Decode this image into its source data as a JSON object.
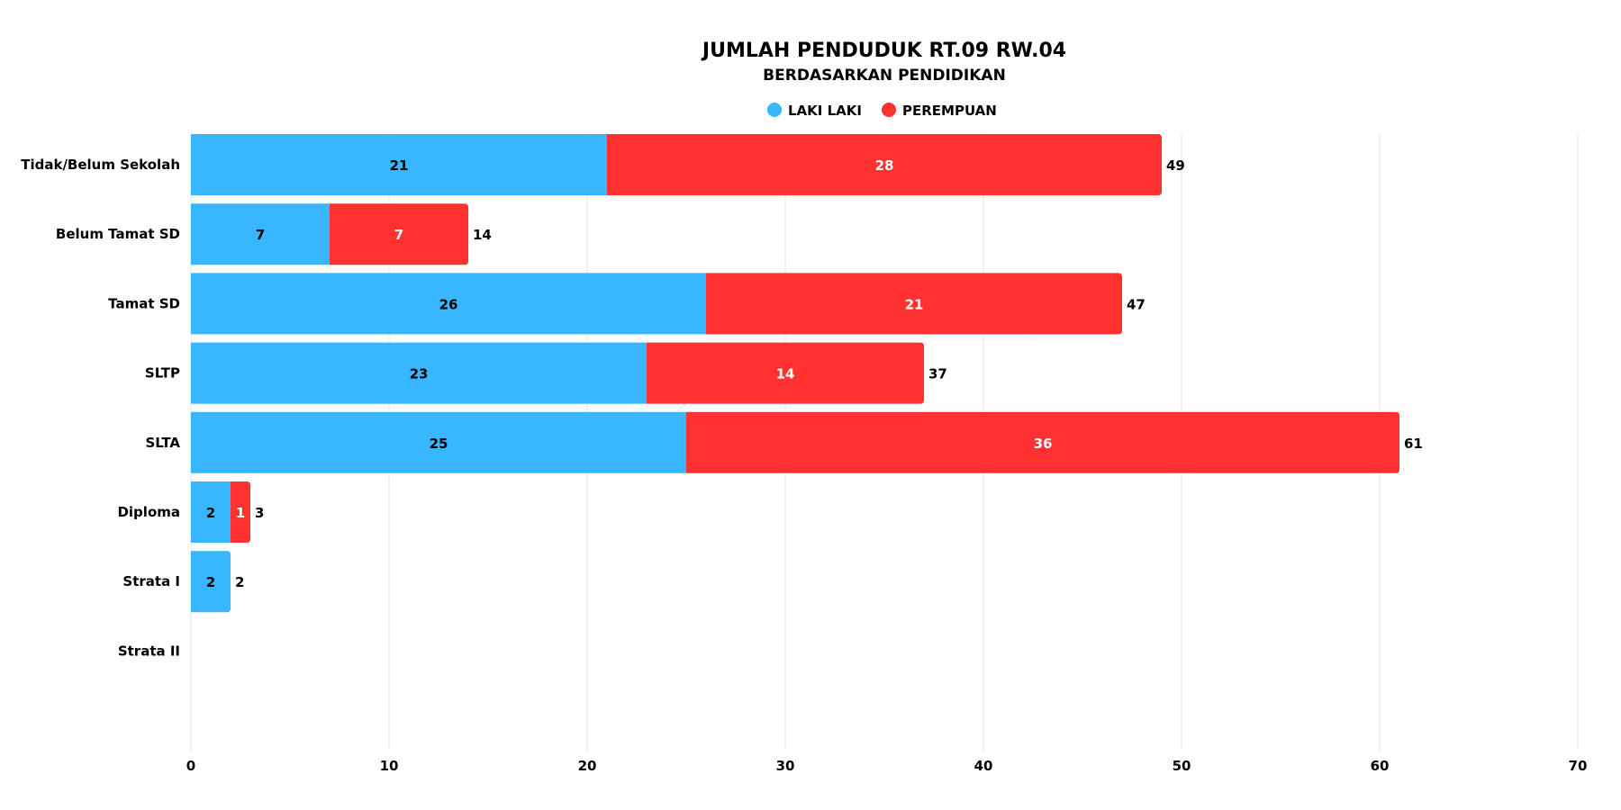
{
  "chart_data": {
    "type": "bar",
    "orientation": "horizontal",
    "stacked": true,
    "title": "JUMLAH PENDUDUK RT.09 RW.04",
    "subtitle": "BERDASARKAN PENDIDIKAN",
    "categories": [
      "Tidak/Belum Sekolah",
      "Belum Tamat SD",
      "Tamat SD",
      "SLTP",
      "SLTA",
      "Diploma",
      "Strata I",
      "Strata II"
    ],
    "series": [
      {
        "name": "LAKI LAKI",
        "color": "#38b6ff",
        "label_color": "#000000",
        "values": [
          21,
          7,
          26,
          23,
          25,
          2,
          2,
          0
        ]
      },
      {
        "name": "PEREMPUAN",
        "color": "#ff3131",
        "label_color": "#ffffff",
        "values": [
          28,
          7,
          21,
          14,
          36,
          1,
          0,
          0
        ]
      }
    ],
    "totals": [
      49,
      14,
      47,
      37,
      61,
      3,
      2,
      null
    ],
    "xlim": [
      0,
      70
    ],
    "xticks": [
      0,
      10,
      20,
      30,
      40,
      50,
      60,
      70
    ],
    "grid": true,
    "legend_position": "top-center",
    "xlabel": "",
    "ylabel": ""
  }
}
